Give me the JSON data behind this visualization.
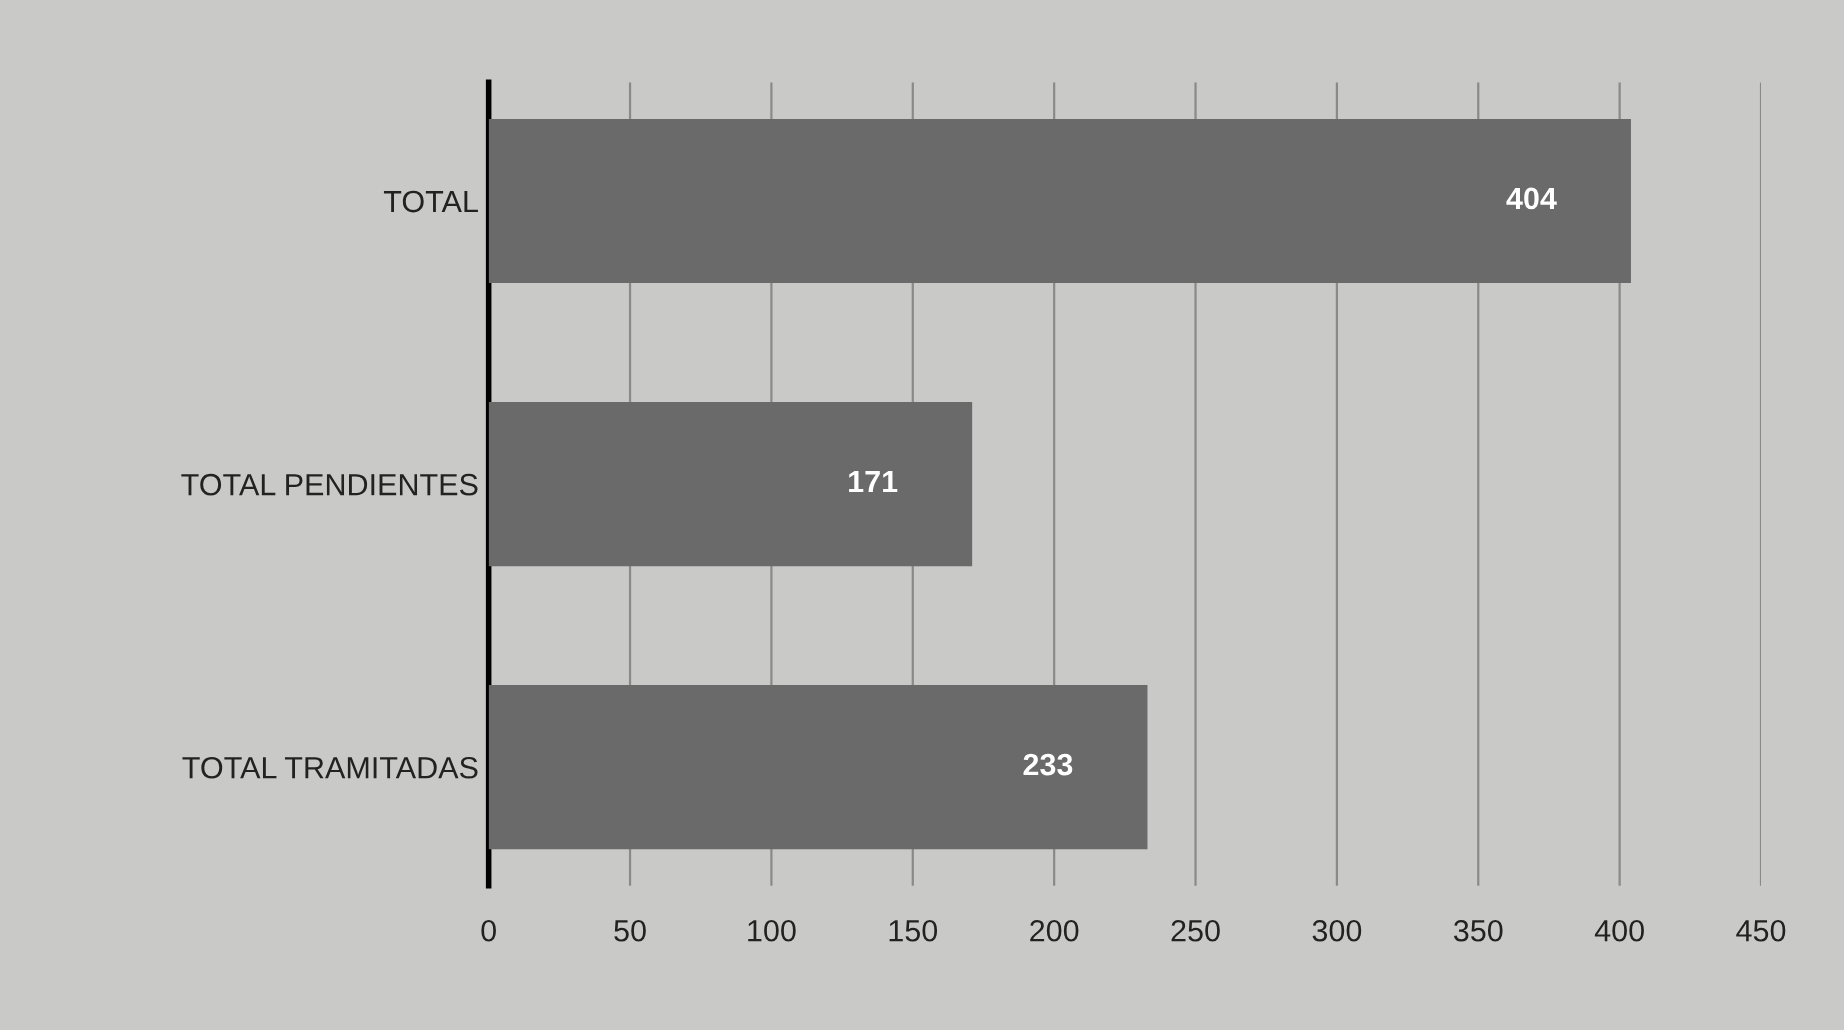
{
  "chart_data": {
    "type": "bar",
    "orientation": "horizontal",
    "categories": [
      "TOTAL",
      "TOTAL PENDIENTES",
      "TOTAL TRAMITADAS"
    ],
    "values": [
      404,
      171,
      233
    ],
    "color": "#6a6a6a",
    "xlim": [
      0,
      450
    ],
    "xticks": [
      0,
      50,
      100,
      150,
      200,
      250,
      300,
      350,
      400,
      450
    ],
    "grid": "x",
    "data_labels": true
  }
}
